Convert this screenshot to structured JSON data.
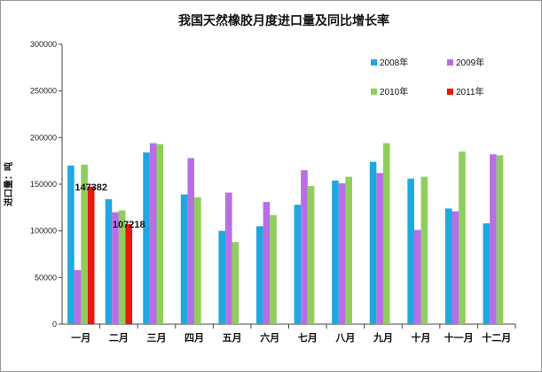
{
  "chart_data": {
    "type": "bar",
    "title": "我国天然橡胶月度进口量及同比增长率",
    "ylabel": "进口量：吨",
    "xlabel": "",
    "ylim": [
      0,
      300000
    ],
    "yticks": [
      "300000",
      "250000",
      "200000",
      "150000",
      "100000",
      "50000",
      "0"
    ],
    "categories": [
      "一月",
      "二月",
      "三月",
      "四月",
      "五月",
      "六月",
      "七月",
      "八月",
      "九月",
      "十月",
      "十一月",
      "十二月"
    ],
    "series": [
      {
        "name": "2008年",
        "color": "#1fa7e0",
        "values": [
          170000,
          134000,
          184000,
          139000,
          100000,
          105000,
          128000,
          154000,
          174000,
          156000,
          124000,
          108000
        ]
      },
      {
        "name": "2009年",
        "color": "#b86ee6",
        "values": [
          58000,
          120000,
          194000,
          178000,
          141000,
          131000,
          165000,
          151000,
          162000,
          101000,
          121000,
          182000
        ]
      },
      {
        "name": "2010年",
        "color": "#8fce5a",
        "values": [
          171000,
          122000,
          193000,
          136000,
          88000,
          117000,
          148000,
          158000,
          194000,
          158000,
          185000,
          181000
        ]
      },
      {
        "name": "2011年",
        "color": "#e8170f",
        "values": [
          147382,
          107218,
          null,
          null,
          null,
          null,
          null,
          null,
          null,
          null,
          null,
          null
        ]
      }
    ],
    "data_labels": [
      {
        "series": 3,
        "index": 0,
        "text": "147382"
      },
      {
        "series": 3,
        "index": 1,
        "text": "107218"
      }
    ],
    "grid": false,
    "legend": "top-right"
  }
}
